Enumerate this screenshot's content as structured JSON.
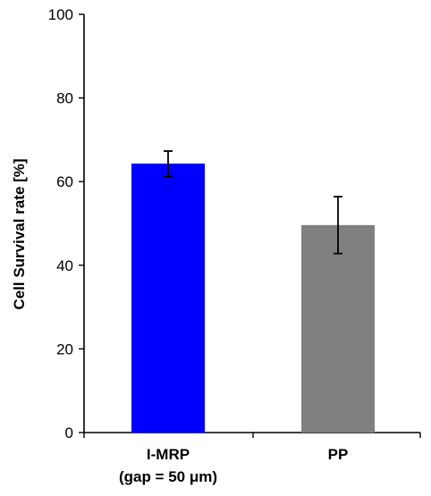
{
  "chart_data": {
    "type": "bar",
    "categories": [
      "I-MRP",
      "PP"
    ],
    "category_sublabels": [
      "(gap = 50 μm)",
      ""
    ],
    "values": [
      64.3,
      49.6
    ],
    "error_low": [
      61.2,
      42.8
    ],
    "error_high": [
      67.3,
      56.4
    ],
    "bar_colors": [
      "#0000ff",
      "#808080"
    ],
    "ylabel": "Cell Survival rate [%]",
    "xlabel": "",
    "title": "",
    "ylim": [
      0,
      100
    ],
    "yticks": [
      0,
      20,
      40,
      60,
      80,
      100
    ],
    "grid": false,
    "legend": "none"
  }
}
